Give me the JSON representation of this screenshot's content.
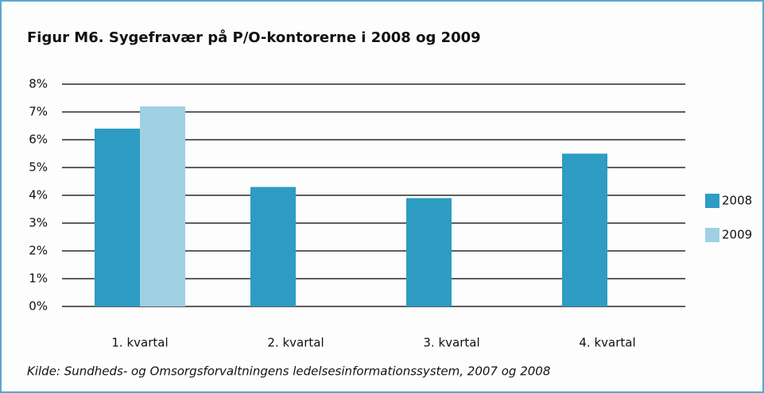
{
  "chart_data": {
    "type": "bar",
    "title": "Figur M6. Sygefravær på P/O-kontorerne i 2008 og 2009",
    "categories": [
      "1. kvartal",
      "2. kvartal",
      "3. kvartal",
      "4. kvartal"
    ],
    "series": [
      {
        "name": "2008",
        "color": "#2e9cc3",
        "values": [
          6.4,
          4.3,
          3.9,
          5.5
        ]
      },
      {
        "name": "2009",
        "color": "#9fd1e3",
        "values": [
          7.2,
          null,
          null,
          null
        ]
      }
    ],
    "ylim": [
      0,
      8
    ],
    "yticks": [
      {
        "value": 0,
        "label": "0%"
      },
      {
        "value": 1,
        "label": "1%"
      },
      {
        "value": 2,
        "label": "2%"
      },
      {
        "value": 3,
        "label": "3%"
      },
      {
        "value": 4,
        "label": "4%"
      },
      {
        "value": 5,
        "label": "5%"
      },
      {
        "value": 6,
        "label": "6%"
      },
      {
        "value": 7,
        "label": "7%"
      },
      {
        "value": 8,
        "label": "8%"
      }
    ],
    "grid": true,
    "legend": "right",
    "source": "Kilde: Sundheds- og Omsorgsforvaltningens ledelsesinformationssystem, 2007 og 2008"
  }
}
